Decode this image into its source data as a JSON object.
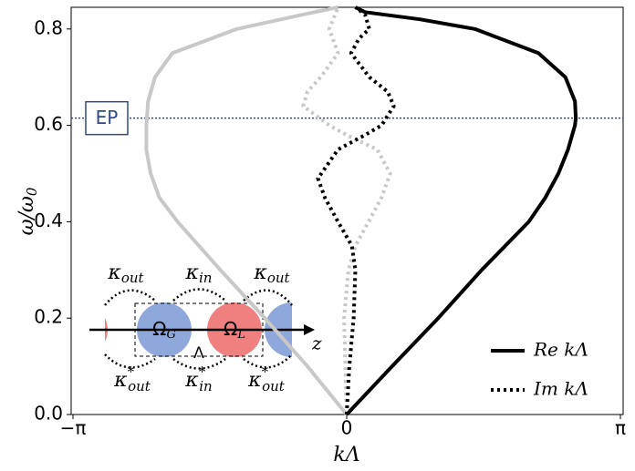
{
  "chart_data": {
    "type": "line",
    "xlabel": "kΛ",
    "ylabel": "ω/ω",
    "ylabel_sub": "0",
    "xlim": [
      -3.1416,
      3.1416
    ],
    "ylim": [
      0,
      0.845
    ],
    "xticks": [
      {
        "value": -3.1416,
        "label": "−π"
      },
      0,
      {
        "value": 3.1416,
        "label": "π"
      }
    ],
    "yticks": [
      {
        "value": 0,
        "label": "0.0"
      },
      0.2,
      0.4,
      0.6,
      0.8
    ],
    "legend": "lower right",
    "series": [
      {
        "name": "Re kΛ",
        "color": "#000000",
        "linestyle": "solid",
        "x": [
          0,
          0.52,
          1.05,
          1.55,
          2.09,
          2.28,
          2.43,
          2.54,
          2.62,
          2.63,
          2.62,
          2.51,
          2.2,
          1.47,
          0.84,
          0.21,
          0.1
        ],
        "values": [
          0,
          0.1,
          0.2,
          0.3,
          0.4,
          0.45,
          0.5,
          0.55,
          0.6,
          0.615,
          0.65,
          0.7,
          0.75,
          0.8,
          0.82,
          0.835,
          0.845
        ]
      },
      {
        "name": "Im kΛ",
        "color": "#000000",
        "linestyle": "dotted",
        "x": [
          0,
          0.03,
          0.08,
          0.1,
          0.06,
          -0.1,
          -0.25,
          -0.33,
          -0.1,
          0.21,
          0.4,
          0.54,
          0.47,
          0.26,
          0.05,
          0.14,
          0.26,
          0.21,
          0.1
        ],
        "values": [
          0,
          0.1,
          0.2,
          0.3,
          0.35,
          0.4,
          0.45,
          0.49,
          0.55,
          0.58,
          0.6,
          0.64,
          0.67,
          0.7,
          0.75,
          0.78,
          0.8,
          0.83,
          0.845
        ]
      },
      {
        "color": "#c8c8c8",
        "linestyle": "solid",
        "x": [
          0,
          -0.45,
          -0.94,
          -1.45,
          -1.94,
          -2.15,
          -2.25,
          -2.3,
          -2.3,
          -2.28,
          -2.2,
          -2.0,
          -1.26,
          -0.5,
          -0.1
        ],
        "values": [
          0,
          0.1,
          0.2,
          0.3,
          0.4,
          0.45,
          0.5,
          0.55,
          0.6,
          0.65,
          0.7,
          0.75,
          0.8,
          0.83,
          0.845
        ]
      },
      {
        "color": "#c8c8c8",
        "linestyle": "dotted",
        "x": [
          0,
          -0.03,
          0.02,
          0.1,
          0.25,
          0.4,
          0.5,
          0.35,
          0,
          -0.2,
          -0.5,
          -0.45,
          -0.3,
          -0.1,
          -0.2,
          -0.1
        ],
        "values": [
          0,
          0.2,
          0.3,
          0.35,
          0.4,
          0.45,
          0.5,
          0.55,
          0.58,
          0.6,
          0.64,
          0.67,
          0.7,
          0.75,
          0.8,
          0.845
        ]
      }
    ],
    "ep": {
      "label": "EP",
      "value": 0.615,
      "color": "#2e4a8c"
    },
    "inset": {
      "top_labels": [
        {
          "text": "κ",
          "sub": "out"
        },
        {
          "text": "κ",
          "sub": "in"
        },
        {
          "text": "κ",
          "sub": "out"
        }
      ],
      "bottom_labels": [
        {
          "text": "κ",
          "sub": "out",
          "sup": "*"
        },
        {
          "text": "κ",
          "sub": "in",
          "sup": "*"
        },
        {
          "text": "κ",
          "sub": "out",
          "sup": "*"
        }
      ],
      "gain_label": {
        "text": "Ω",
        "sub": "G"
      },
      "loss_label": {
        "text": "Ω",
        "sub": "L"
      },
      "period": "Λ",
      "axis": "z"
    }
  }
}
